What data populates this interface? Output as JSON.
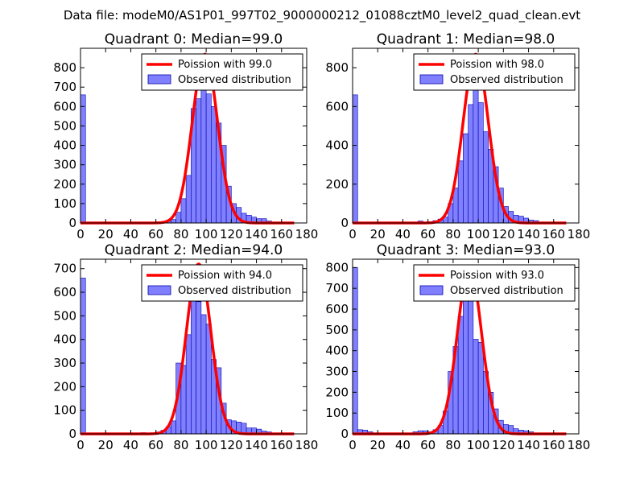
{
  "figure": {
    "suptitle": "Data file: modeM0/AS1P01_997T02_9000000212_01088cztM0_level2_quad_clean.evt"
  },
  "colors": {
    "bar_fill": "#8080ff",
    "bar_edge": "#0000b0",
    "curve": "#ff0000",
    "axes": "#000000"
  },
  "chart_data": [
    {
      "type": "bar",
      "title": "Quadrant 0: Median=99.0",
      "xlim": [
        0,
        180
      ],
      "ylim": [
        0,
        900
      ],
      "xticks": [
        0,
        20,
        40,
        60,
        80,
        100,
        120,
        140,
        160,
        180
      ],
      "yticks": [
        0,
        100,
        200,
        300,
        400,
        500,
        600,
        700,
        800
      ],
      "legend": [
        "Poission with 99.0",
        "Observed distribution"
      ],
      "median": 99.0,
      "peak": 870,
      "bin_width": 4,
      "bins": [
        {
          "x": 0,
          "y": 660
        },
        {
          "x": 64,
          "y": 5
        },
        {
          "x": 68,
          "y": 10
        },
        {
          "x": 72,
          "y": 18
        },
        {
          "x": 76,
          "y": 55
        },
        {
          "x": 80,
          "y": 125
        },
        {
          "x": 84,
          "y": 245
        },
        {
          "x": 88,
          "y": 590
        },
        {
          "x": 92,
          "y": 640
        },
        {
          "x": 96,
          "y": 750
        },
        {
          "x": 100,
          "y": 665
        },
        {
          "x": 104,
          "y": 600
        },
        {
          "x": 108,
          "y": 515
        },
        {
          "x": 112,
          "y": 400
        },
        {
          "x": 116,
          "y": 190
        },
        {
          "x": 120,
          "y": 100
        },
        {
          "x": 124,
          "y": 80
        },
        {
          "x": 128,
          "y": 50
        },
        {
          "x": 132,
          "y": 40
        },
        {
          "x": 136,
          "y": 30
        },
        {
          "x": 140,
          "y": 22
        },
        {
          "x": 144,
          "y": 22
        },
        {
          "x": 148,
          "y": 10
        },
        {
          "x": 152,
          "y": 5
        }
      ]
    },
    {
      "type": "bar",
      "title": "Quadrant 1: Median=98.0",
      "xlim": [
        0,
        180
      ],
      "ylim": [
        0,
        900
      ],
      "xticks": [
        0,
        20,
        40,
        60,
        80,
        100,
        120,
        140,
        160,
        180
      ],
      "yticks": [
        0,
        200,
        400,
        600,
        800
      ],
      "legend": [
        "Poission with 98.0",
        "Observed distribution"
      ],
      "median": 98.0,
      "peak": 870,
      "bin_width": 4,
      "bins": [
        {
          "x": 0,
          "y": 660
        },
        {
          "x": 52,
          "y": 10
        },
        {
          "x": 64,
          "y": 12
        },
        {
          "x": 68,
          "y": 20
        },
        {
          "x": 72,
          "y": 30
        },
        {
          "x": 76,
          "y": 100
        },
        {
          "x": 80,
          "y": 180
        },
        {
          "x": 84,
          "y": 320
        },
        {
          "x": 88,
          "y": 460
        },
        {
          "x": 92,
          "y": 610
        },
        {
          "x": 96,
          "y": 700
        },
        {
          "x": 100,
          "y": 620
        },
        {
          "x": 104,
          "y": 470
        },
        {
          "x": 108,
          "y": 380
        },
        {
          "x": 112,
          "y": 290
        },
        {
          "x": 116,
          "y": 180
        },
        {
          "x": 120,
          "y": 85
        },
        {
          "x": 124,
          "y": 60
        },
        {
          "x": 128,
          "y": 40
        },
        {
          "x": 132,
          "y": 35
        },
        {
          "x": 136,
          "y": 25
        },
        {
          "x": 140,
          "y": 15
        },
        {
          "x": 144,
          "y": 12
        }
      ]
    },
    {
      "type": "bar",
      "title": "Quadrant 2: Median=94.0",
      "xlim": [
        0,
        180
      ],
      "ylim": [
        0,
        740
      ],
      "xticks": [
        0,
        20,
        40,
        60,
        80,
        100,
        120,
        140,
        160,
        180
      ],
      "yticks": [
        0,
        100,
        200,
        300,
        400,
        500,
        600,
        700
      ],
      "legend": [
        "Poission with 94.0",
        "Observed distribution"
      ],
      "median": 94.0,
      "peak": 720,
      "bin_width": 4,
      "bins": [
        {
          "x": 0,
          "y": 660
        },
        {
          "x": 48,
          "y": 5
        },
        {
          "x": 60,
          "y": 8
        },
        {
          "x": 64,
          "y": 15
        },
        {
          "x": 68,
          "y": 30
        },
        {
          "x": 72,
          "y": 55
        },
        {
          "x": 76,
          "y": 300
        },
        {
          "x": 80,
          "y": 290
        },
        {
          "x": 84,
          "y": 420
        },
        {
          "x": 88,
          "y": 705
        },
        {
          "x": 92,
          "y": 560
        },
        {
          "x": 96,
          "y": 505
        },
        {
          "x": 100,
          "y": 465
        },
        {
          "x": 104,
          "y": 315
        },
        {
          "x": 108,
          "y": 280
        },
        {
          "x": 112,
          "y": 130
        },
        {
          "x": 116,
          "y": 60
        },
        {
          "x": 120,
          "y": 55
        },
        {
          "x": 124,
          "y": 50
        },
        {
          "x": 128,
          "y": 45
        },
        {
          "x": 132,
          "y": 25
        },
        {
          "x": 136,
          "y": 25
        },
        {
          "x": 140,
          "y": 20
        },
        {
          "x": 144,
          "y": 12
        },
        {
          "x": 148,
          "y": 8
        }
      ]
    },
    {
      "type": "bar",
      "title": "Quadrant 3: Median=93.0",
      "xlim": [
        0,
        180
      ],
      "ylim": [
        0,
        840
      ],
      "xticks": [
        0,
        20,
        40,
        60,
        80,
        100,
        120,
        140,
        160,
        180
      ],
      "yticks": [
        0,
        100,
        200,
        300,
        400,
        500,
        600,
        700,
        800
      ],
      "legend": [
        "Poission with 93.0",
        "Observed distribution"
      ],
      "median": 93.0,
      "peak": 800,
      "bin_width": 4,
      "bins": [
        {
          "x": 0,
          "y": 800
        },
        {
          "x": 4,
          "y": 20
        },
        {
          "x": 8,
          "y": 18
        },
        {
          "x": 12,
          "y": 10
        },
        {
          "x": 48,
          "y": 10
        },
        {
          "x": 52,
          "y": 15
        },
        {
          "x": 56,
          "y": 15
        },
        {
          "x": 60,
          "y": 10
        },
        {
          "x": 64,
          "y": 20
        },
        {
          "x": 68,
          "y": 40
        },
        {
          "x": 72,
          "y": 110
        },
        {
          "x": 76,
          "y": 300
        },
        {
          "x": 80,
          "y": 420
        },
        {
          "x": 84,
          "y": 565
        },
        {
          "x": 88,
          "y": 760
        },
        {
          "x": 92,
          "y": 700
        },
        {
          "x": 96,
          "y": 455
        },
        {
          "x": 100,
          "y": 440
        },
        {
          "x": 104,
          "y": 300
        },
        {
          "x": 108,
          "y": 200
        },
        {
          "x": 112,
          "y": 120
        },
        {
          "x": 116,
          "y": 65
        },
        {
          "x": 120,
          "y": 45
        },
        {
          "x": 124,
          "y": 40
        },
        {
          "x": 128,
          "y": 25
        },
        {
          "x": 132,
          "y": 18
        },
        {
          "x": 136,
          "y": 15
        },
        {
          "x": 140,
          "y": 10
        }
      ]
    }
  ]
}
